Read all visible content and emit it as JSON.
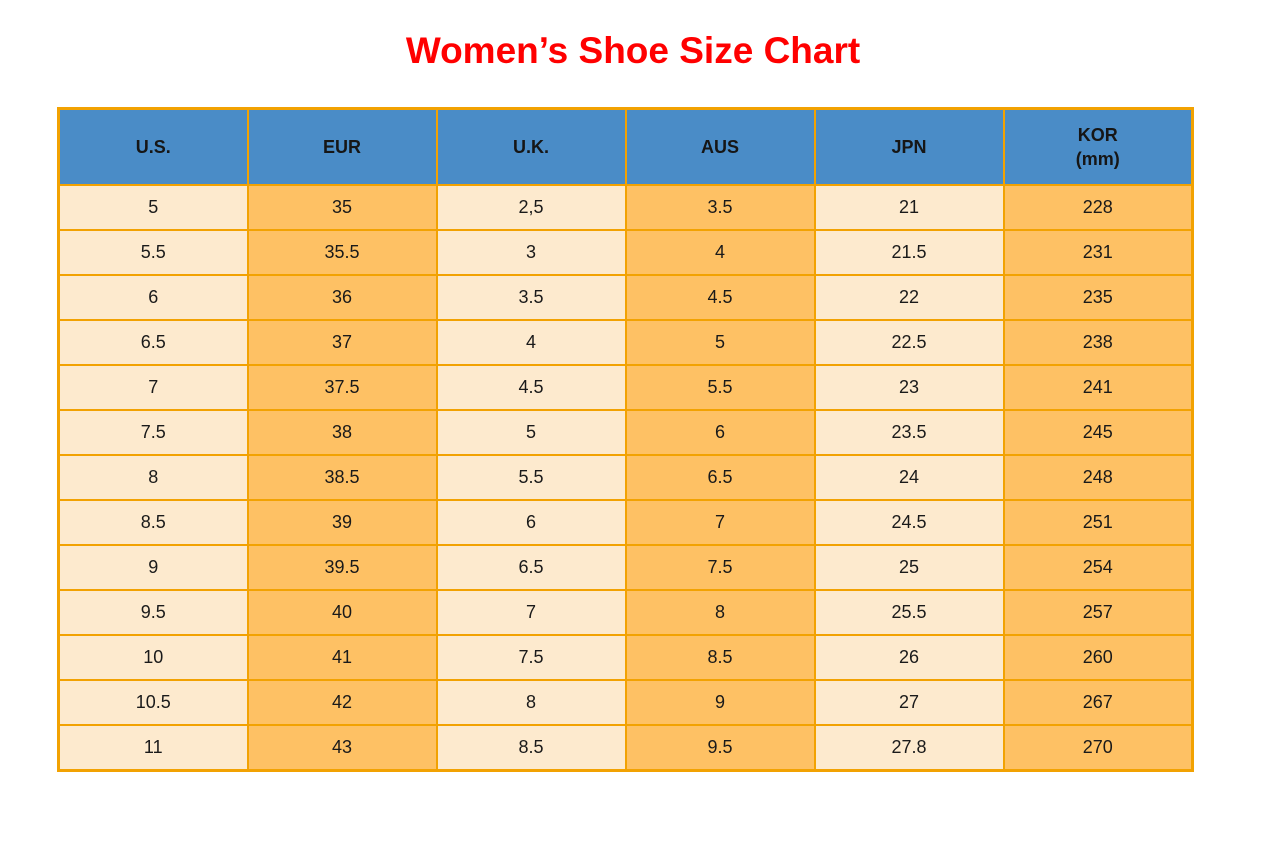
{
  "page": {
    "title": "Women’s Shoe Size Chart"
  },
  "chart_data": {
    "type": "table",
    "title": "Women’s Shoe Size Chart",
    "columns": [
      {
        "label": "U.S."
      },
      {
        "label": "EUR"
      },
      {
        "label": "U.K."
      },
      {
        "label": "AUS"
      },
      {
        "label": "JPN"
      },
      {
        "label": "KOR",
        "sublabel": "(mm)"
      }
    ],
    "rows": [
      [
        "5",
        "35",
        "2,5",
        "3.5",
        "21",
        "228"
      ],
      [
        "5.5",
        "35.5",
        "3",
        "4",
        "21.5",
        "231"
      ],
      [
        "6",
        "36",
        "3.5",
        "4.5",
        "22",
        "235"
      ],
      [
        "6.5",
        "37",
        "4",
        "5",
        "22.5",
        "238"
      ],
      [
        "7",
        "37.5",
        "4.5",
        "5.5",
        "23",
        "241"
      ],
      [
        "7.5",
        "38",
        "5",
        "6",
        "23.5",
        "245"
      ],
      [
        "8",
        "38.5",
        "5.5",
        "6.5",
        "24",
        "248"
      ],
      [
        "8.5",
        "39",
        "6",
        "7",
        "24.5",
        "251"
      ],
      [
        "9",
        "39.5",
        "6.5",
        "7.5",
        "25",
        "254"
      ],
      [
        "9.5",
        "40",
        "7",
        "8",
        "25.5",
        "257"
      ],
      [
        "10",
        "41",
        "7.5",
        "8.5",
        "26",
        "260"
      ],
      [
        "10.5",
        "42",
        "8",
        "9",
        "27",
        "267"
      ],
      [
        "11",
        "43",
        "8.5",
        "9.5",
        "27.8",
        "270"
      ]
    ]
  },
  "colors": {
    "title_red": "#FF0000",
    "header_blue": "#4A8CC7",
    "cell_light": "#FDEACE",
    "cell_orange": "#FEC164",
    "border_orange": "#F2A202",
    "text_dark": "#1A1A1A"
  }
}
